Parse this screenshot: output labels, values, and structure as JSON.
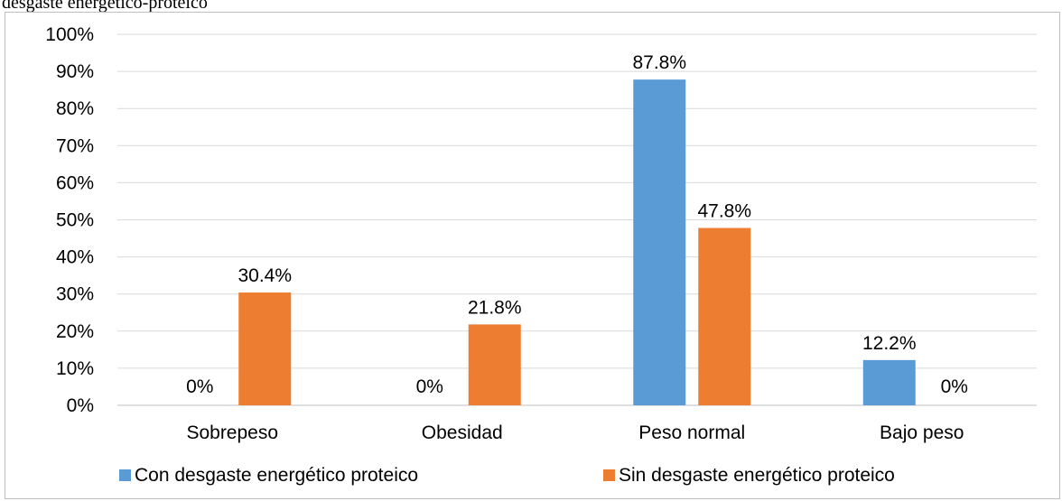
{
  "caption": "desgaste energético-proteico",
  "chart_data": {
    "type": "bar",
    "categories": [
      "Sobrepeso",
      "Obesidad",
      "Peso normal",
      "Bajo peso"
    ],
    "series": [
      {
        "name": "Con desgaste energético proteico",
        "values": [
          0,
          0,
          87.8,
          12.2
        ],
        "labels": [
          "0%",
          "0%",
          "87.8%",
          "12.2%"
        ],
        "color": "#5b9bd5"
      },
      {
        "name": "Sin desgaste energético proteico",
        "values": [
          30.4,
          21.8,
          47.8,
          0
        ],
        "labels": [
          "30.4%",
          "21.8%",
          "47.8%",
          "0%"
        ],
        "color": "#ed7d31"
      }
    ],
    "y_ticks": [
      "0%",
      "10%",
      "20%",
      "30%",
      "40%",
      "50%",
      "60%",
      "70%",
      "80%",
      "90%",
      "100%"
    ],
    "ylim": [
      0,
      100
    ],
    "grid": true,
    "legend_position": "bottom"
  }
}
